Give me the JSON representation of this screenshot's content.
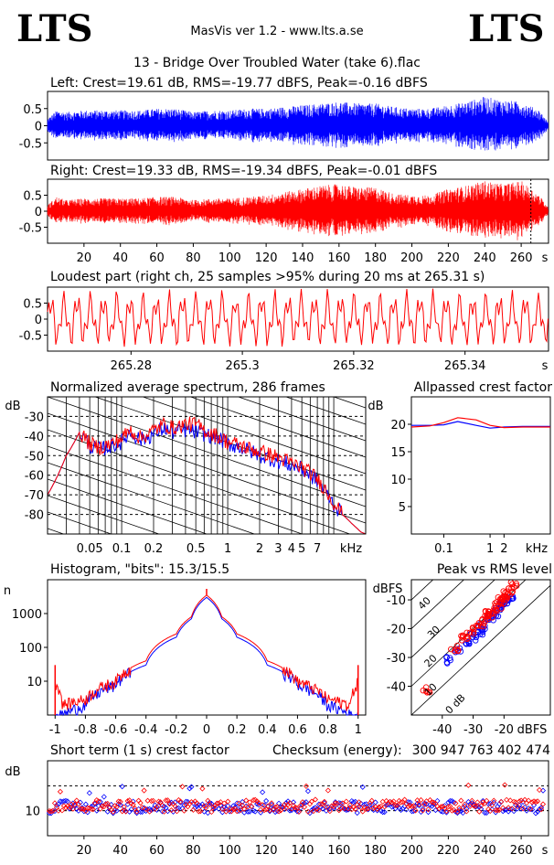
{
  "header": {
    "logo_left": "LTS",
    "logo_right": "LTS",
    "app_title": "MasVis ver 1.2 - www.lts.a.se",
    "file_title": "13 - Bridge Over Troubled Water (take 6).flac"
  },
  "colors": {
    "left": "#0000ff",
    "right": "#ff0000",
    "axis": "#000000"
  },
  "chart_data": [
    {
      "id": "left-waveform",
      "type": "line",
      "title": "Left: Crest=19.61 dB, RMS=-19.77 dBFS, Peak=-0.16 dBFS",
      "yticks": [
        "0.5",
        "0",
        "-0.5"
      ],
      "ylim": [
        -1,
        1
      ],
      "xlim": [
        0,
        275
      ],
      "series": [
        {
          "color": "#0000ff",
          "envelope_x": [
            0,
            5,
            10,
            20,
            30,
            40,
            50,
            60,
            70,
            80,
            90,
            100,
            110,
            120,
            130,
            140,
            150,
            160,
            170,
            180,
            190,
            200,
            210,
            220,
            230,
            240,
            250,
            260,
            270,
            275
          ],
          "envelope_peak": [
            0.2,
            0.45,
            0.4,
            0.45,
            0.45,
            0.45,
            0.45,
            0.5,
            0.5,
            0.4,
            0.45,
            0.45,
            0.5,
            0.5,
            0.55,
            0.6,
            0.65,
            0.7,
            0.65,
            0.65,
            0.55,
            0.5,
            0.5,
            0.6,
            0.7,
            0.85,
            0.75,
            0.7,
            0.45,
            0.1
          ]
        }
      ]
    },
    {
      "id": "right-waveform",
      "type": "line",
      "title": "Right: Crest=19.33 dB, RMS=-19.34 dBFS, Peak=-0.01 dBFS",
      "yticks": [
        "0.5",
        "0",
        "-0.5"
      ],
      "xticks": [
        "20",
        "40",
        "60",
        "80",
        "100",
        "120",
        "140",
        "160",
        "180",
        "200",
        "220",
        "240",
        "260"
      ],
      "xunit": "s",
      "ylim": [
        -1,
        1
      ],
      "xlim": [
        0,
        275
      ],
      "marker_x": 265.31,
      "series": [
        {
          "color": "#ff0000",
          "envelope_x": [
            0,
            5,
            10,
            20,
            30,
            40,
            50,
            60,
            70,
            80,
            90,
            100,
            110,
            120,
            130,
            140,
            150,
            160,
            170,
            180,
            190,
            200,
            210,
            220,
            230,
            240,
            250,
            260,
            270,
            275
          ],
          "envelope_peak": [
            0.2,
            0.45,
            0.35,
            0.4,
            0.4,
            0.4,
            0.4,
            0.45,
            0.45,
            0.35,
            0.4,
            0.4,
            0.45,
            0.5,
            0.6,
            0.7,
            0.8,
            0.85,
            0.75,
            0.75,
            0.55,
            0.5,
            0.5,
            0.7,
            0.8,
            0.95,
            0.85,
            0.95,
            0.5,
            0.1
          ]
        }
      ]
    },
    {
      "id": "loudest-part",
      "type": "line",
      "title": "Loudest part (right ch, 25 samples >95% during 20 ms at 265.31 s)",
      "yticks": [
        "0.5",
        "0",
        "-0.5"
      ],
      "xticks": [
        "265.28",
        "265.3",
        "265.32",
        "265.34"
      ],
      "xunit": "s",
      "xlim": [
        265.265,
        265.355
      ],
      "ylim": [
        -1,
        1
      ],
      "series": [
        {
          "color": "#ff0000"
        }
      ]
    },
    {
      "id": "avg-spectrum",
      "type": "line",
      "title": "Normalized average spectrum, 286 frames",
      "ylabel": "dB",
      "yticks": [
        "-30",
        "-40",
        "-50",
        "-60",
        "-70",
        "-80"
      ],
      "xticks": [
        "0.05",
        "0.1",
        "0.2",
        "0.5",
        "1",
        "2",
        "3",
        "4",
        "5",
        "7"
      ],
      "xunit": "kHz",
      "xlim": [
        0.02,
        20
      ],
      "ylim": [
        -90,
        -20
      ],
      "log_x": true,
      "series": [
        {
          "color": "#0000ff",
          "x": [
            0.02,
            0.025,
            0.03,
            0.04,
            0.05,
            0.06,
            0.08,
            0.1,
            0.12,
            0.15,
            0.2,
            0.25,
            0.3,
            0.4,
            0.5,
            0.6,
            0.8,
            1,
            1.5,
            2,
            3,
            4,
            5,
            6,
            7,
            8,
            10,
            12,
            15,
            18,
            20
          ],
          "y": [
            -70,
            -60,
            -50,
            -38,
            -45,
            -47,
            -45,
            -43,
            -38,
            -42,
            -39,
            -36,
            -38,
            -37,
            -38,
            -39,
            -41,
            -44,
            -47,
            -50,
            -53,
            -55,
            -57,
            -60,
            -63,
            -67,
            -75,
            -80,
            -85,
            -89,
            -90
          ]
        },
        {
          "color": "#ff0000",
          "x": [
            0.02,
            0.025,
            0.03,
            0.04,
            0.05,
            0.06,
            0.08,
            0.1,
            0.12,
            0.15,
            0.2,
            0.25,
            0.3,
            0.4,
            0.5,
            0.6,
            0.8,
            1,
            1.5,
            2,
            3,
            4,
            5,
            6,
            7,
            8,
            10,
            12,
            15,
            18,
            20
          ],
          "y": [
            -70,
            -60,
            -50,
            -38,
            -44,
            -46,
            -44,
            -41,
            -37,
            -41,
            -37,
            -34,
            -36,
            -34,
            -34,
            -37,
            -40,
            -43,
            -46,
            -48,
            -51,
            -54,
            -56,
            -59,
            -62,
            -66,
            -74,
            -80,
            -85,
            -89,
            -90
          ]
        }
      ]
    },
    {
      "id": "allpassed-crest",
      "type": "line",
      "title": "Allpassed crest factor",
      "ylabel": "dB",
      "yticks": [
        "20",
        "15",
        "10",
        "5"
      ],
      "xticks": [
        "0.1",
        "1",
        "2"
      ],
      "xunit": "kHz",
      "xlim": [
        0.02,
        20
      ],
      "ylim": [
        0,
        25
      ],
      "log_x": true,
      "series": [
        {
          "color": "#0000ff",
          "x": [
            0.02,
            0.05,
            0.1,
            0.2,
            0.5,
            1,
            2,
            5,
            10,
            20
          ],
          "y": [
            19.8,
            19.8,
            19.9,
            20.5,
            19.8,
            19.3,
            19.5,
            19.6,
            19.6,
            19.6
          ]
        },
        {
          "color": "#ff0000",
          "x": [
            0.02,
            0.05,
            0.1,
            0.2,
            0.5,
            1,
            2,
            5,
            10,
            20
          ],
          "y": [
            19.5,
            19.7,
            20.3,
            21.2,
            20.8,
            19.8,
            19.4,
            19.5,
            19.5,
            19.5
          ]
        }
      ]
    },
    {
      "id": "histogram",
      "type": "line",
      "title": "Histogram, \"bits\": 15.3/15.5",
      "ylabel": "n",
      "yticks": [
        "1000",
        "100",
        "10"
      ],
      "xticks": [
        "-1",
        "-0.8",
        "-0.6",
        "-0.4",
        "-0.2",
        "0",
        "0.2",
        "0.4",
        "0.6",
        "0.8",
        "1"
      ],
      "xlim": [
        -1.05,
        1.05
      ],
      "log_y": true,
      "series": [
        {
          "color": "#0000ff",
          "x": [
            -0.95,
            -0.8,
            -0.6,
            -0.4,
            -0.2,
            -0.1,
            0,
            0.1,
            0.2,
            0.4,
            0.6,
            0.8,
            0.95
          ],
          "y": [
            1,
            2,
            8,
            30,
            200,
            700,
            3000,
            700,
            200,
            30,
            8,
            2,
            1
          ]
        },
        {
          "color": "#ff0000",
          "x": [
            -1,
            -0.95,
            -0.8,
            -0.6,
            -0.4,
            -0.2,
            -0.1,
            0,
            0.1,
            0.2,
            0.4,
            0.6,
            0.8,
            0.95,
            1
          ],
          "y": [
            10,
            2,
            3,
            10,
            40,
            250,
            800,
            3500,
            800,
            250,
            40,
            10,
            3,
            2,
            10
          ]
        }
      ]
    },
    {
      "id": "peak-vs-rms",
      "type": "scatter",
      "title": "Peak vs RMS level",
      "ylabel": "dBFS",
      "xlabel": "dBFS",
      "yticks": [
        "-10",
        "-20",
        "-30",
        "-40"
      ],
      "xticks": [
        "-40",
        "-30",
        "-20"
      ],
      "diag_labels": [
        "40",
        "30",
        "20",
        "10",
        "0 dB"
      ],
      "xlim": [
        -50,
        -5
      ],
      "ylim": [
        -50,
        -3
      ],
      "series": [
        {
          "color": "#0000ff",
          "x": [
            -38,
            -35,
            -32,
            -30,
            -28,
            -27,
            -25,
            -24,
            -23,
            -22,
            -21,
            -20,
            -19,
            -18
          ],
          "y": [
            -31,
            -28,
            -25,
            -23,
            -21,
            -19,
            -17,
            -16,
            -15,
            -13,
            -12,
            -11,
            -10,
            -9
          ]
        },
        {
          "color": "#ff0000",
          "x": [
            -45,
            -36,
            -33,
            -31,
            -29,
            -27,
            -26,
            -25,
            -24,
            -23,
            -22,
            -21,
            -20,
            -19,
            -18,
            -17
          ],
          "y": [
            -41,
            -27,
            -23,
            -22,
            -20,
            -18,
            -16,
            -15,
            -14,
            -13,
            -12,
            -10,
            -9,
            -8,
            -7,
            -5
          ]
        }
      ]
    },
    {
      "id": "short-term-crest",
      "type": "scatter",
      "title": "Short term (1 s) crest factor",
      "checksum_label": "Checksum (energy):",
      "checksum_value": "300 947 763 402 474",
      "ylabel": "dB",
      "yticks": [
        "10"
      ],
      "xticks": [
        "20",
        "40",
        "60",
        "80",
        "100",
        "120",
        "140",
        "160",
        "180",
        "200",
        "220",
        "240",
        "260"
      ],
      "xunit": "s",
      "xlim": [
        0,
        275
      ],
      "ylim": [
        0,
        30
      ],
      "series": [
        {
          "color": "#0000ff",
          "mean": 11.5
        },
        {
          "color": "#ff0000",
          "mean": 12
        }
      ]
    }
  ]
}
